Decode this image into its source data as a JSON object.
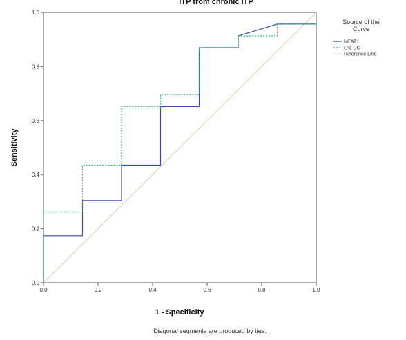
{
  "chart_data": {
    "type": "line",
    "title": "ITP from chronic ITP",
    "xlabel": "1 - Specificity",
    "ylabel": "Sensitivity",
    "xlim": [
      0,
      1
    ],
    "ylim": [
      0,
      1
    ],
    "x_ticks": [
      "0.0",
      "0.2",
      "0.4",
      "0.6",
      "0.8",
      "1.0"
    ],
    "y_ticks": [
      "0.0",
      "0.2",
      "0.4",
      "0.6",
      "0.8",
      "1.0"
    ],
    "grid": false,
    "legend": {
      "title_lines": [
        "Source of the",
        "Curve"
      ],
      "position": "right"
    },
    "series": [
      {
        "name": "NEAT1",
        "color": "#3a4ea8",
        "style": "solid",
        "x": [
          0,
          0,
          0.143,
          0.143,
          0.286,
          0.286,
          0.429,
          0.429,
          0.571,
          0.571,
          0.714,
          0.714,
          0.857,
          0.857,
          1.0
        ],
        "y": [
          0,
          0.174,
          0.174,
          0.304,
          0.304,
          0.435,
          0.435,
          0.652,
          0.652,
          0.87,
          0.87,
          0.913,
          0.957,
          0.957,
          0.957
        ]
      },
      {
        "name": "Lnc-DC",
        "color": "#2bb673",
        "style": "dotted",
        "x": [
          0,
          0,
          0.143,
          0.143,
          0.286,
          0.286,
          0.429,
          0.429,
          0.571,
          0.571,
          0.714,
          0.714,
          0.857,
          0.857,
          1.0,
          1.0
        ],
        "y": [
          0,
          0.261,
          0.261,
          0.435,
          0.435,
          0.652,
          0.652,
          0.696,
          0.696,
          0.87,
          0.87,
          0.913,
          0.913,
          0.957,
          0.957,
          1.0
        ]
      },
      {
        "name": "Reference Line",
        "color": "#e3dcc3",
        "style": "solid",
        "x": [
          0,
          1
        ],
        "y": [
          0,
          1
        ]
      }
    ],
    "footnote": "Diagonal segments are produced by ties."
  }
}
